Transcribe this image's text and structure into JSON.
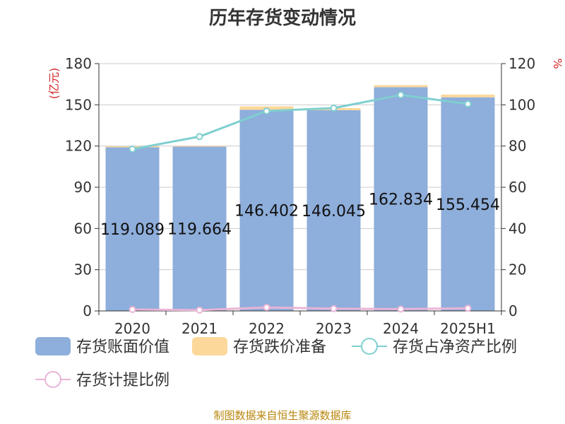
{
  "chart_data": {
    "type": "bar",
    "title": "历年存货变动情况",
    "y_unit_left": "(亿元)",
    "y_unit_right": "%",
    "categories": [
      "2020",
      "2021",
      "2022",
      "2023",
      "2024",
      "2025H1"
    ],
    "ylim_left": [
      0,
      180
    ],
    "yticks_left": [
      "0",
      "30",
      "60",
      "90",
      "120",
      "150",
      "180"
    ],
    "ylim_right": [
      0,
      120
    ],
    "yticks_right": [
      "0",
      "20",
      "40",
      "60",
      "80",
      "100",
      "120"
    ],
    "grid": true,
    "series": [
      {
        "name": "存货账面价值",
        "type": "bar",
        "axis": "left",
        "color": "#8eaedb",
        "values": [
          119.089,
          119.664,
          146.402,
          146.045,
          162.834,
          155.454
        ],
        "labels": [
          "119.089",
          "119.664",
          "146.402",
          "146.045",
          "162.834",
          "155.454"
        ]
      },
      {
        "name": "存货跌价准备",
        "type": "bar",
        "axis": "left",
        "stacked": true,
        "color": "#fcd89a",
        "values": [
          0.8,
          0.5,
          2.5,
          1.6,
          1.5,
          2.0
        ]
      },
      {
        "name": "存货占净资产比例",
        "type": "line",
        "axis": "right",
        "color": "#7fcfd0",
        "values": [
          78.5,
          84.6,
          97.0,
          98.4,
          104.8,
          100.4
        ]
      },
      {
        "name": "存货计提比例",
        "type": "line",
        "axis": "right",
        "color": "#e8b4d6",
        "values": [
          0.7,
          0.4,
          1.7,
          1.1,
          0.9,
          1.3
        ]
      }
    ],
    "legend_position": "bottom"
  },
  "source": "制图数据来自恒生聚源数据库"
}
